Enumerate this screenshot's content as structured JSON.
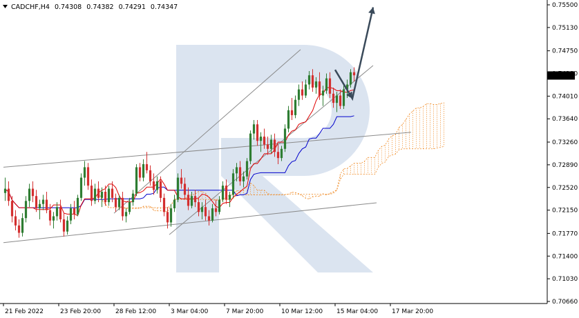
{
  "header": {
    "symbol": "CADCHF,H4",
    "open": "0.74308",
    "high": "0.74382",
    "low": "0.74291",
    "close": "0.74347",
    "menu_icon": "triangle-down-icon"
  },
  "current_price_label": "0.74347",
  "colors": {
    "bull": "#2e7d32",
    "bear": "#d32f2f",
    "tenkan": "#e00000",
    "kijun": "#0000cc",
    "cloud": "#f08a24",
    "channel": "#8a8a8a",
    "arrow": "#3a4a5a",
    "watermark": "#dbe4f0",
    "price_tag_bg": "#000000"
  },
  "chart_data": {
    "type": "candlestick",
    "symbol": "CADCHF",
    "timeframe": "H4",
    "y_axis": {
      "min": 0.7066,
      "max": 0.755,
      "tick_labels": [
        "0.75500",
        "0.75130",
        "0.74750",
        "0.74380",
        "0.74010",
        "0.73640",
        "0.73260",
        "0.72890",
        "0.72520",
        "0.72150",
        "0.71770",
        "0.71400",
        "0.71030",
        "0.70660"
      ]
    },
    "x_axis": {
      "tick_labels": [
        "21 Feb 2022",
        "23 Feb 20:00",
        "28 Feb 12:00",
        "3 Mar 04:00",
        "7 Mar 20:00",
        "10 Mar 12:00",
        "15 Mar 04:00",
        "17 Mar 20:00"
      ],
      "tick_bars": [
        0,
        16,
        32,
        48,
        64,
        80,
        96,
        112
      ]
    },
    "bars_total": 155,
    "candles": [
      [
        0.7243,
        0.7268,
        0.723,
        0.725
      ],
      [
        0.725,
        0.7262,
        0.7222,
        0.723
      ],
      [
        0.723,
        0.7238,
        0.7195,
        0.7205
      ],
      [
        0.7205,
        0.7215,
        0.7182,
        0.719
      ],
      [
        0.719,
        0.72,
        0.717,
        0.7178
      ],
      [
        0.7178,
        0.721,
        0.7172,
        0.7202
      ],
      [
        0.7202,
        0.7238,
        0.7195,
        0.723
      ],
      [
        0.723,
        0.7258,
        0.722,
        0.725
      ],
      [
        0.725,
        0.7262,
        0.7228,
        0.7238
      ],
      [
        0.7238,
        0.7248,
        0.7212,
        0.7218
      ],
      [
        0.7218,
        0.7232,
        0.72,
        0.7225
      ],
      [
        0.7225,
        0.724,
        0.7215,
        0.7232
      ],
      [
        0.7232,
        0.7245,
        0.721,
        0.7215
      ],
      [
        0.7215,
        0.7225,
        0.719,
        0.7198
      ],
      [
        0.7198,
        0.7212,
        0.7185,
        0.7205
      ],
      [
        0.7205,
        0.7228,
        0.7198,
        0.722
      ],
      [
        0.722,
        0.7232,
        0.7195,
        0.72
      ],
      [
        0.72,
        0.721,
        0.7172,
        0.718
      ],
      [
        0.718,
        0.7205,
        0.7175,
        0.7198
      ],
      [
        0.7198,
        0.7225,
        0.7192,
        0.7218
      ],
      [
        0.7218,
        0.723,
        0.72,
        0.7208
      ],
      [
        0.7208,
        0.724,
        0.7205,
        0.7235
      ],
      [
        0.7235,
        0.7275,
        0.723,
        0.7268
      ],
      [
        0.7268,
        0.7295,
        0.7255,
        0.7285
      ],
      [
        0.7285,
        0.7292,
        0.7248,
        0.7255
      ],
      [
        0.7255,
        0.7265,
        0.7222,
        0.723
      ],
      [
        0.723,
        0.7258,
        0.7225,
        0.725
      ],
      [
        0.725,
        0.7262,
        0.7228,
        0.7235
      ],
      [
        0.7235,
        0.7252,
        0.722,
        0.7245
      ],
      [
        0.7245,
        0.7255,
        0.7222,
        0.7228
      ],
      [
        0.7228,
        0.7255,
        0.7222,
        0.725
      ],
      [
        0.725,
        0.7262,
        0.7228,
        0.7235
      ],
      [
        0.7235,
        0.7242,
        0.7212,
        0.722
      ],
      [
        0.722,
        0.724,
        0.7215,
        0.7235
      ],
      [
        0.7235,
        0.7245,
        0.7198,
        0.7205
      ],
      [
        0.7205,
        0.7218,
        0.7195,
        0.7212
      ],
      [
        0.7212,
        0.7235,
        0.7208,
        0.7228
      ],
      [
        0.7228,
        0.7248,
        0.7222,
        0.7242
      ],
      [
        0.7242,
        0.729,
        0.7238,
        0.7285
      ],
      [
        0.7285,
        0.7292,
        0.7262,
        0.7268
      ],
      [
        0.7268,
        0.7298,
        0.7262,
        0.729
      ],
      [
        0.729,
        0.731,
        0.7275,
        0.728
      ],
      [
        0.728,
        0.7288,
        0.7255,
        0.7262
      ],
      [
        0.7262,
        0.7275,
        0.724,
        0.7248
      ],
      [
        0.7248,
        0.727,
        0.7242,
        0.7262
      ],
      [
        0.7262,
        0.727,
        0.7228,
        0.7235
      ],
      [
        0.7235,
        0.7242,
        0.7205,
        0.7212
      ],
      [
        0.7212,
        0.722,
        0.7185,
        0.7195
      ],
      [
        0.7195,
        0.7225,
        0.7188,
        0.7218
      ],
      [
        0.7218,
        0.724,
        0.7212,
        0.7232
      ],
      [
        0.7232,
        0.7275,
        0.7228,
        0.7268
      ],
      [
        0.7268,
        0.7282,
        0.725,
        0.7258
      ],
      [
        0.7258,
        0.7268,
        0.7232,
        0.724
      ],
      [
        0.724,
        0.7252,
        0.7215,
        0.7222
      ],
      [
        0.7222,
        0.7245,
        0.7218,
        0.7238
      ],
      [
        0.7238,
        0.7248,
        0.722,
        0.7228
      ],
      [
        0.7228,
        0.7235,
        0.7205,
        0.7212
      ],
      [
        0.7212,
        0.7228,
        0.72,
        0.722
      ],
      [
        0.722,
        0.7232,
        0.7198,
        0.7205
      ],
      [
        0.7205,
        0.7215,
        0.719,
        0.7198
      ],
      [
        0.7198,
        0.7225,
        0.7195,
        0.7218
      ],
      [
        0.7218,
        0.7232,
        0.7205,
        0.7212
      ],
      [
        0.7212,
        0.7238,
        0.7208,
        0.7232
      ],
      [
        0.7232,
        0.7262,
        0.7228,
        0.7255
      ],
      [
        0.7255,
        0.7265,
        0.7225,
        0.7232
      ],
      [
        0.7232,
        0.7245,
        0.722,
        0.724
      ],
      [
        0.724,
        0.7282,
        0.7235,
        0.7275
      ],
      [
        0.7275,
        0.7292,
        0.7262,
        0.7285
      ],
      [
        0.7285,
        0.7295,
        0.7255,
        0.7262
      ],
      [
        0.7262,
        0.7278,
        0.7252,
        0.727
      ],
      [
        0.727,
        0.73,
        0.7265,
        0.7295
      ],
      [
        0.7295,
        0.7345,
        0.729,
        0.734
      ],
      [
        0.734,
        0.7362,
        0.733,
        0.7355
      ],
      [
        0.7355,
        0.7362,
        0.732,
        0.7328
      ],
      [
        0.7328,
        0.7342,
        0.731,
        0.7335
      ],
      [
        0.7335,
        0.7348,
        0.7315,
        0.7322
      ],
      [
        0.7322,
        0.7335,
        0.7305,
        0.7315
      ],
      [
        0.7315,
        0.7338,
        0.7308,
        0.733
      ],
      [
        0.733,
        0.734,
        0.7302,
        0.731
      ],
      [
        0.731,
        0.7322,
        0.729,
        0.73
      ],
      [
        0.73,
        0.732,
        0.7295,
        0.7315
      ],
      [
        0.7315,
        0.7355,
        0.731,
        0.7348
      ],
      [
        0.7348,
        0.7385,
        0.7342,
        0.7378
      ],
      [
        0.7378,
        0.7398,
        0.7362,
        0.737
      ],
      [
        0.737,
        0.7402,
        0.7365,
        0.7395
      ],
      [
        0.7395,
        0.742,
        0.7385,
        0.7412
      ],
      [
        0.7412,
        0.7425,
        0.7395,
        0.7402
      ],
      [
        0.7402,
        0.7428,
        0.7398,
        0.742
      ],
      [
        0.742,
        0.7442,
        0.7412,
        0.7435
      ],
      [
        0.7435,
        0.7445,
        0.7408,
        0.7415
      ],
      [
        0.7415,
        0.7432,
        0.7405,
        0.7425
      ],
      [
        0.7425,
        0.744,
        0.7395,
        0.7402
      ],
      [
        0.7402,
        0.7418,
        0.7385,
        0.741
      ],
      [
        0.741,
        0.7438,
        0.7405,
        0.743
      ],
      [
        0.743,
        0.744,
        0.7398,
        0.7405
      ],
      [
        0.7405,
        0.7415,
        0.7382,
        0.739
      ],
      [
        0.739,
        0.7408,
        0.7375,
        0.7402
      ],
      [
        0.7402,
        0.7412,
        0.738,
        0.7385
      ],
      [
        0.7385,
        0.742,
        0.738,
        0.7412
      ],
      [
        0.7412,
        0.7428,
        0.7398,
        0.742
      ],
      [
        0.742,
        0.7445,
        0.7415,
        0.744
      ],
      [
        0.744,
        0.7448,
        0.7425,
        0.7435
      ]
    ],
    "channels": [
      {
        "name": "rising-channel-upper",
        "from": [
          32,
          0.721
        ],
        "to": [
          86,
          0.7477
        ]
      },
      {
        "name": "rising-channel-lower",
        "from": [
          48,
          0.7175
        ],
        "to": [
          107,
          0.7451
        ]
      },
      {
        "name": "wide-channel-upper",
        "from": [
          0,
          0.7285
        ],
        "to": [
          118,
          0.7342
        ]
      },
      {
        "name": "wide-channel-lower",
        "from": [
          0,
          0.7162
        ],
        "to": [
          108,
          0.7227
        ]
      }
    ],
    "forecast_path": [
      [
        96,
        0.7444
      ],
      [
        101,
        0.7397
      ],
      [
        107,
        0.7546
      ]
    ]
  }
}
